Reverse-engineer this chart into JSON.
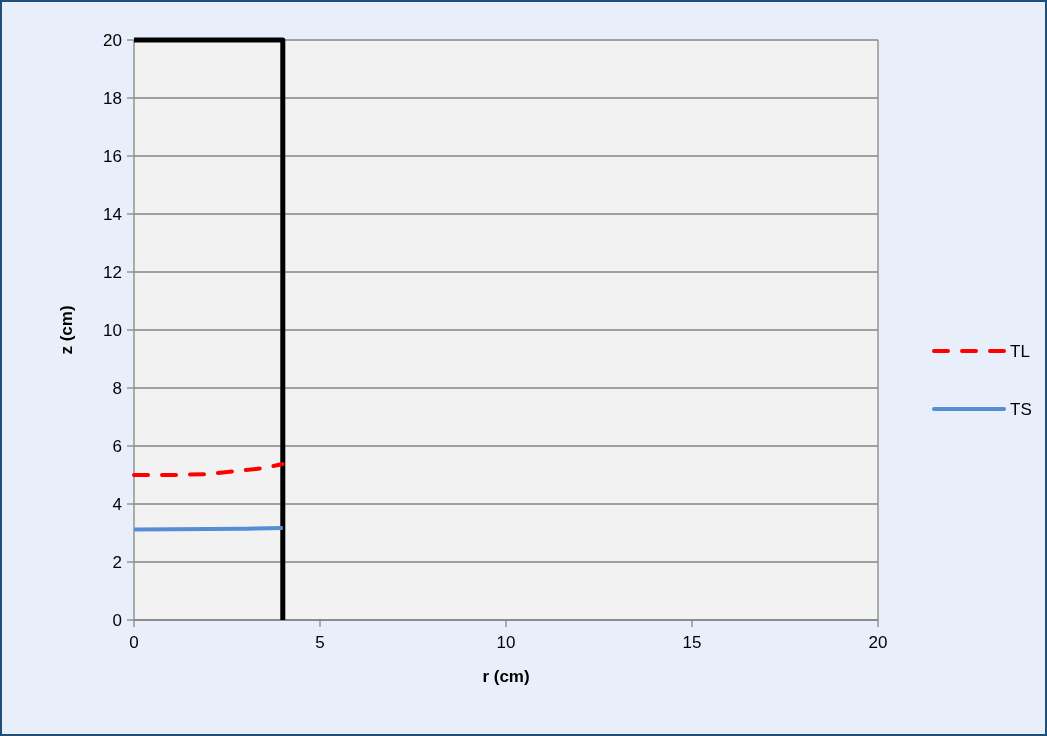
{
  "chart_data": {
    "type": "line",
    "xlabel": "r (cm)",
    "ylabel": "z (cm)",
    "xlim": [
      0,
      20
    ],
    "xticks": [
      0,
      5,
      10,
      15,
      20
    ],
    "ylim": [
      0,
      20
    ],
    "yticks": [
      0,
      2,
      4,
      6,
      8,
      10,
      12,
      14,
      16,
      18,
      20
    ],
    "grid": "y",
    "legend": "right",
    "marker": "none",
    "series": [
      {
        "color": "#000000",
        "x": [
          0,
          4,
          4
        ],
        "values": [
          20,
          20,
          0
        ],
        "line_style": "solid"
      },
      {
        "name": "TL",
        "color": "#ff0000",
        "x": [
          0,
          1,
          2,
          3,
          3.5,
          4
        ],
        "values": [
          5.0,
          5.0,
          5.03,
          5.17,
          5.24,
          5.38
        ],
        "line_style": "dashed"
      },
      {
        "name": "TS",
        "color": "#558ed5",
        "x": [
          0,
          1,
          2,
          3,
          4
        ],
        "values": [
          3.12,
          3.13,
          3.14,
          3.15,
          3.17
        ],
        "line_style": "solid"
      }
    ]
  }
}
